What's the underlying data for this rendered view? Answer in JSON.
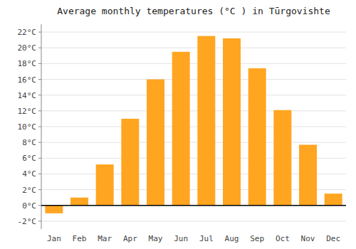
{
  "chart_data": {
    "type": "bar",
    "title": "Average monthly temperatures (°C ) in Tūrgovishte",
    "categories": [
      "Jan",
      "Feb",
      "Mar",
      "Apr",
      "May",
      "Jun",
      "Jul",
      "Aug",
      "Sep",
      "Oct",
      "Nov",
      "Dec"
    ],
    "values": [
      -1.0,
      1.0,
      5.2,
      11.0,
      16.0,
      19.5,
      21.5,
      21.2,
      17.4,
      12.1,
      7.7,
      1.5
    ],
    "color": "#FFA520",
    "ylim": [
      -3,
      23
    ],
    "yticks": [
      {
        "value": -2,
        "label": "-2°C"
      },
      {
        "value": 0,
        "label": "0°C"
      },
      {
        "value": 2,
        "label": "2°C"
      },
      {
        "value": 4,
        "label": "4°C"
      },
      {
        "value": 6,
        "label": "6°C"
      },
      {
        "value": 8,
        "label": "8°C"
      },
      {
        "value": 10,
        "label": "10°C"
      },
      {
        "value": 12,
        "label": "12°C"
      },
      {
        "value": 14,
        "label": "14°C"
      },
      {
        "value": 16,
        "label": "16°C"
      },
      {
        "value": 18,
        "label": "18°C"
      },
      {
        "value": 20,
        "label": "20°C"
      },
      {
        "value": 22,
        "label": "22°C"
      }
    ],
    "grid": true
  }
}
